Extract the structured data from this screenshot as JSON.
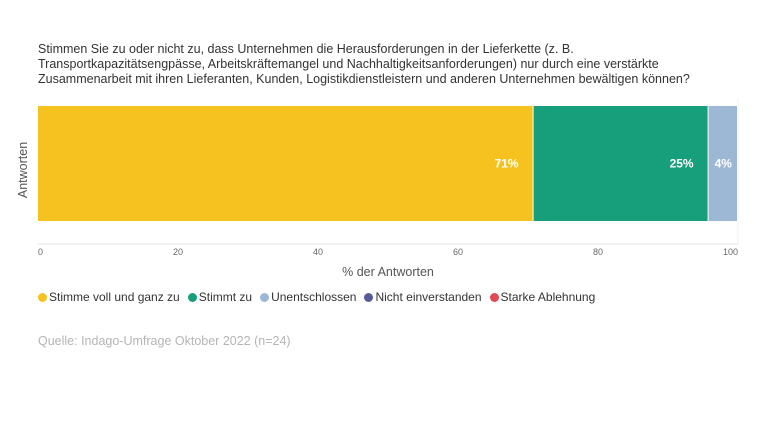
{
  "title": "Stimmen Sie zu oder nicht zu, dass Unternehmen die Herausforderungen in der Lieferkette (z. B. Transportkapazitätsengpässe, Arbeitskräftemangel und Nachhaltigkeitsanforderungen) nur durch eine verstärkte Zusammenarbeit mit ihren Lieferanten, Kunden, Logistikdienstleistern und anderen Unternehmen bewältigen können?",
  "source": "Quelle: Indago-Umfrage Oktober 2022 (n=24)",
  "chart_data": {
    "type": "bar",
    "orientation": "horizontal",
    "stacked": true,
    "categories": [
      "Antworten"
    ],
    "ylabel": "Antworten",
    "xlabel": "% der Antworten",
    "xlim": [
      0,
      100
    ],
    "xticks": [
      "0",
      "20",
      "40",
      "60",
      "80",
      "100"
    ],
    "grid": false,
    "legend_position": "bottom",
    "series": [
      {
        "name": "Stimme voll und ganz zu",
        "values": [
          70.8
        ],
        "label": "71%",
        "color": "#f5c220"
      },
      {
        "name": "Stimmt zu",
        "values": [
          25.0
        ],
        "label": "25%",
        "color": "#179e7a"
      },
      {
        "name": "Unentschlossen",
        "values": [
          4.2
        ],
        "label": "4%",
        "color": "#9db8d5"
      },
      {
        "name": "Nicht einverstanden",
        "values": [
          0
        ],
        "label": "",
        "color": "#575c99"
      },
      {
        "name": "Starke Ablehnung",
        "values": [
          0
        ],
        "label": "",
        "color": "#e24856"
      }
    ]
  }
}
